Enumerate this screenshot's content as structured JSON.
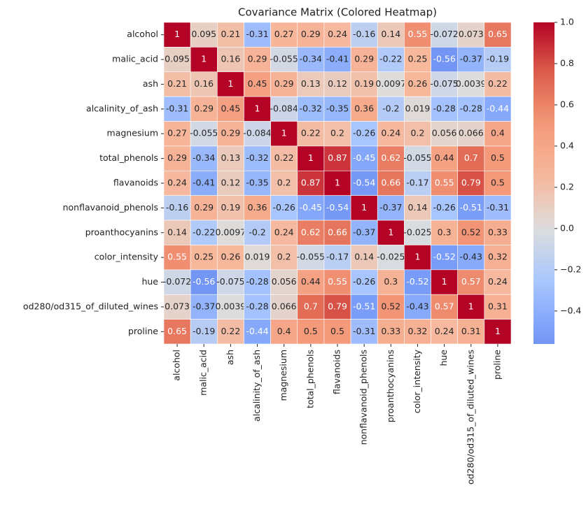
{
  "chart_data": {
    "type": "heatmap",
    "title": "Covariance Matrix (Colored Heatmap)",
    "categories": [
      "alcohol",
      "malic_acid",
      "ash",
      "alcalinity_of_ash",
      "magnesium",
      "total_phenols",
      "flavanoids",
      "nonflavanoid_phenols",
      "proanthocyanins",
      "color_intensity",
      "hue",
      "od280/od315_of_diluted_wines",
      "proline"
    ],
    "values": [
      [
        1,
        0.095,
        0.21,
        -0.31,
        0.27,
        0.29,
        0.24,
        -0.16,
        0.14,
        0.55,
        -0.072,
        0.073,
        0.65
      ],
      [
        0.095,
        1,
        0.16,
        0.29,
        -0.055,
        -0.34,
        -0.41,
        0.29,
        -0.22,
        0.25,
        -0.56,
        -0.37,
        -0.19
      ],
      [
        0.21,
        0.16,
        1,
        0.45,
        0.29,
        0.13,
        0.12,
        0.19,
        0.0097,
        0.26,
        -0.075,
        0.0039,
        0.22
      ],
      [
        -0.31,
        0.29,
        0.45,
        1,
        -0.084,
        -0.32,
        -0.35,
        0.36,
        -0.2,
        0.019,
        -0.28,
        -0.28,
        -0.44
      ],
      [
        0.27,
        -0.055,
        0.29,
        -0.084,
        1,
        0.22,
        0.2,
        -0.26,
        0.24,
        0.2,
        0.056,
        0.066,
        0.4
      ],
      [
        0.29,
        -0.34,
        0.13,
        -0.32,
        0.22,
        1,
        0.87,
        -0.45,
        0.62,
        -0.055,
        0.44,
        0.7,
        0.5
      ],
      [
        0.24,
        -0.41,
        0.12,
        -0.35,
        0.2,
        0.87,
        1,
        -0.54,
        0.66,
        -0.17,
        0.55,
        0.79,
        0.5
      ],
      [
        -0.16,
        0.29,
        0.19,
        0.36,
        -0.26,
        -0.45,
        -0.54,
        1,
        -0.37,
        0.14,
        -0.26,
        -0.51,
        -0.31
      ],
      [
        0.14,
        -0.22,
        0.0097,
        -0.2,
        0.24,
        0.62,
        0.66,
        -0.37,
        1,
        -0.025,
        0.3,
        0.52,
        0.33
      ],
      [
        0.55,
        0.25,
        0.26,
        0.019,
        0.2,
        -0.055,
        -0.17,
        0.14,
        -0.025,
        1,
        -0.52,
        -0.43,
        0.32
      ],
      [
        -0.072,
        -0.56,
        -0.075,
        -0.28,
        0.056,
        0.44,
        0.55,
        -0.26,
        0.3,
        -0.52,
        1,
        0.57,
        0.24
      ],
      [
        0.073,
        -0.37,
        0.0039,
        -0.28,
        0.066,
        0.7,
        0.79,
        -0.51,
        0.52,
        -0.43,
        0.57,
        1,
        0.31
      ],
      [
        0.65,
        -0.19,
        0.22,
        -0.44,
        0.4,
        0.5,
        0.5,
        -0.31,
        0.33,
        0.32,
        0.24,
        0.31,
        1
      ]
    ],
    "colormap": "coolwarm",
    "center": 0,
    "clim": [
      -0.56,
      1
    ],
    "colorbar_ticks": [
      {
        "value": -0.4,
        "label": "−0.4"
      },
      {
        "value": -0.2,
        "label": "−0.2"
      },
      {
        "value": 0,
        "label": "0.0"
      },
      0.2,
      0.4,
      0.6,
      0.8,
      {
        "value": 1,
        "label": "1.0"
      }
    ]
  }
}
